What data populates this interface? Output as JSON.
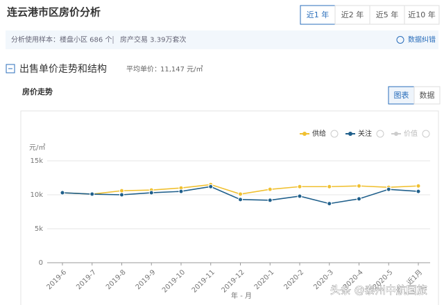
{
  "header": {
    "title": "连云港市区房价分析",
    "tabs": [
      "近1 年",
      "近2 年",
      "近5 年",
      "近10 年"
    ]
  },
  "info": {
    "label": "分析使用样本：",
    "sample": "楼盘小区 686 个",
    "trade": "房产交易 3.39万套次",
    "correction": "数据纠错"
  },
  "section": {
    "title": "出售单价走势和结构",
    "avg_label": "平均单价：",
    "avg_value": "11,147 元/㎡"
  },
  "panel": {
    "title": "房价走势",
    "toggles": [
      "图表",
      "数据"
    ]
  },
  "watermark": "头条 @泰州中航国旅",
  "chart_data": {
    "type": "line",
    "y_unit": "元/㎡",
    "xlabel": "年 - 月",
    "categories": [
      "2019-6",
      "2019-7",
      "2019-8",
      "2019-9",
      "2019-10",
      "2019-11",
      "2019-12",
      "2020-1",
      "2020-2",
      "2020-3",
      "2020-4",
      "2020-5",
      "近1月"
    ],
    "series": [
      {
        "name": "供给",
        "color": "#f0c030",
        "values": [
          10300,
          10100,
          10600,
          10700,
          11000,
          11500,
          10100,
          10800,
          11200,
          11200,
          11300,
          11100,
          11300
        ]
      },
      {
        "name": "关注",
        "color": "#1f5f8b",
        "values": [
          10300,
          10100,
          10000,
          10300,
          10500,
          11200,
          9300,
          9200,
          9800,
          8700,
          9400,
          10800,
          10500
        ]
      },
      {
        "name": "价值",
        "color": "#cccccc",
        "values": [
          null,
          null,
          null,
          null,
          null,
          null,
          null,
          null,
          null,
          null,
          null,
          null,
          null
        ]
      }
    ],
    "ylim": [
      0,
      15000
    ],
    "yticks": [
      0,
      {
        "value": 5000,
        "label": "5k"
      },
      {
        "value": 10000,
        "label": "10k"
      },
      {
        "value": 15000,
        "label": "15k"
      }
    ],
    "grid": true,
    "legend": "top-right"
  }
}
